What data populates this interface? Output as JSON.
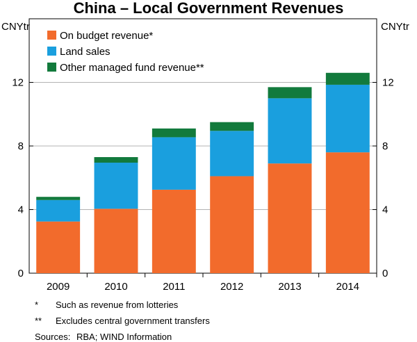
{
  "chart_data": {
    "type": "bar",
    "stacked": true,
    "title": "China – Local Government Revenues",
    "ylabel_left": "CNYtr",
    "ylabel_right": "CNYtr",
    "ylim": [
      0,
      16
    ],
    "yticks": [
      0,
      4,
      8,
      12
    ],
    "grid": true,
    "legend_position": "top-left",
    "categories": [
      "2009",
      "2010",
      "2011",
      "2012",
      "2013",
      "2014"
    ],
    "series": [
      {
        "name": "On budget revenue*",
        "color": "#f26b2c",
        "values": [
          3.25,
          4.05,
          5.25,
          6.1,
          6.9,
          7.6
        ]
      },
      {
        "name": "Land sales",
        "color": "#1a9fde",
        "values": [
          1.35,
          2.9,
          3.3,
          2.85,
          4.1,
          4.25
        ]
      },
      {
        "name": "Other managed fund revenue**",
        "color": "#127a3c",
        "values": [
          0.2,
          0.35,
          0.55,
          0.55,
          0.7,
          0.75
        ]
      }
    ]
  },
  "footnotes": [
    {
      "mark": "*",
      "text": "Such as revenue from lotteries"
    },
    {
      "mark": "**",
      "text": "Excludes central government transfers"
    }
  ],
  "sources": {
    "label": "Sources:",
    "text": "RBA; WIND Information"
  }
}
